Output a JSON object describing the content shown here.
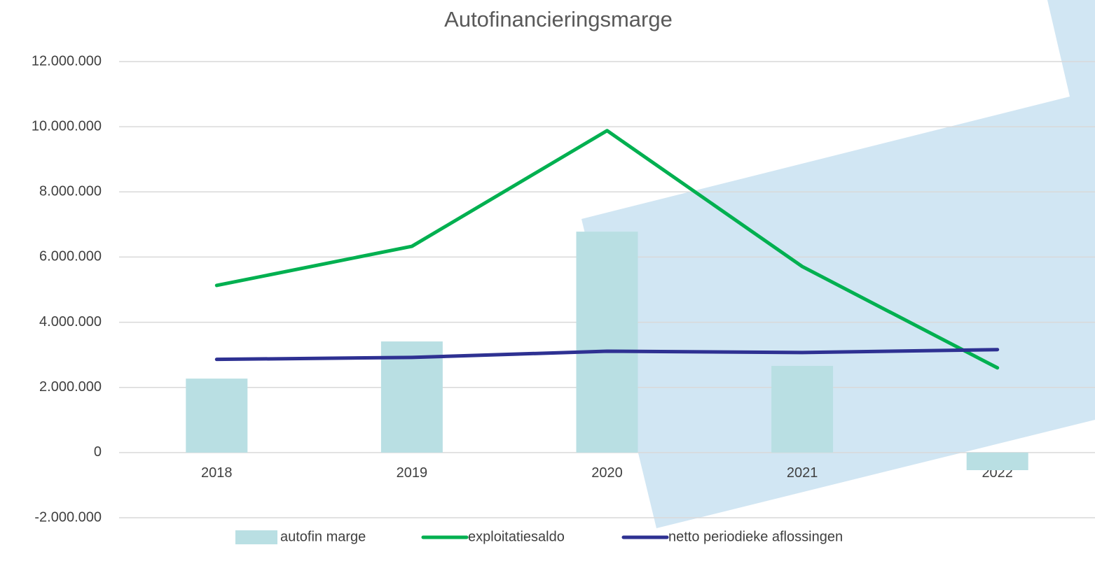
{
  "chart_data": {
    "type": "bar",
    "title": "Autofinancieringsmarge",
    "categories": [
      "2018",
      "2019",
      "2020",
      "2021",
      "2022"
    ],
    "series": [
      {
        "name": "autofin marge",
        "type": "bar",
        "color": "#b9dfe3",
        "values": [
          2270000,
          3410000,
          6780000,
          2660000,
          -540000
        ]
      },
      {
        "name": "exploitatiesaldo",
        "type": "line",
        "color": "#00b050",
        "values": [
          5130000,
          6330000,
          9880000,
          5710000,
          2600000
        ]
      },
      {
        "name": "netto periodieke aflossingen",
        "type": "line",
        "color": "#2e3192",
        "values": [
          2860000,
          2920000,
          3110000,
          3070000,
          3160000
        ]
      }
    ],
    "ylim": [
      -2000000,
      12000000
    ],
    "yticks": [
      {
        "value": -2000000,
        "label": "-2.000.000"
      },
      0,
      {
        "value": 2000000,
        "label": "2.000.000"
      },
      {
        "value": 4000000,
        "label": "4.000.000"
      },
      {
        "value": 6000000,
        "label": "6.000.000"
      },
      {
        "value": 8000000,
        "label": "8.000.000"
      },
      {
        "value": 10000000,
        "label": "10.000.000"
      },
      {
        "value": 12000000,
        "label": "12.000.000"
      }
    ],
    "grid": true,
    "legend": "bottom"
  }
}
